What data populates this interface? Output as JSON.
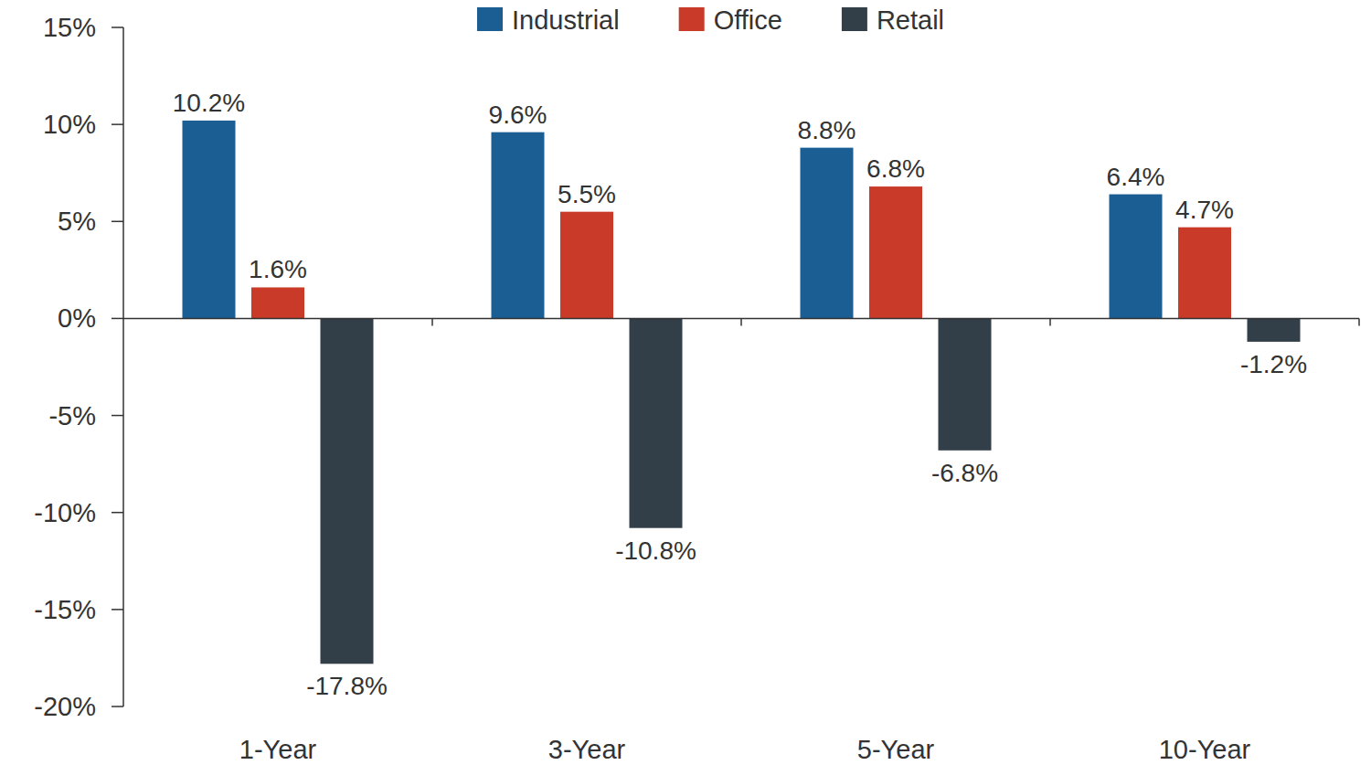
{
  "chart_data": {
    "type": "bar",
    "categories": [
      "1-Year",
      "3-Year",
      "5-Year",
      "10-Year"
    ],
    "series": [
      {
        "name": "Industrial",
        "color": "#1a5e94",
        "values": [
          10.2,
          9.6,
          8.8,
          6.4
        ],
        "value_labels": [
          "10.2%",
          "9.6%",
          "8.8%",
          "6.4%"
        ]
      },
      {
        "name": "Office",
        "color": "#c93a28",
        "values": [
          1.6,
          5.5,
          6.8,
          4.7
        ],
        "value_labels": [
          "1.6%",
          "5.5%",
          "6.8%",
          "4.7%"
        ]
      },
      {
        "name": "Retail",
        "color": "#323e48",
        "values": [
          -17.8,
          -10.8,
          -6.8,
          -1.2
        ],
        "value_labels": [
          "-17.8%",
          "-10.8%",
          "-6.8%",
          "-1.2%"
        ]
      }
    ],
    "ylim": [
      -20,
      15
    ],
    "yticks": [
      {
        "value": -20,
        "label": "-20%"
      },
      {
        "value": -15,
        "label": "-15%"
      },
      {
        "value": -10,
        "label": "-10%"
      },
      {
        "value": -5,
        "label": "-5%"
      },
      {
        "value": 0,
        "label": "0%"
      },
      {
        "value": 5,
        "label": "5%"
      },
      {
        "value": 10,
        "label": "10%"
      },
      {
        "value": 15,
        "label": "15%"
      }
    ],
    "grid": false,
    "legend": "top",
    "data_labels": true
  }
}
